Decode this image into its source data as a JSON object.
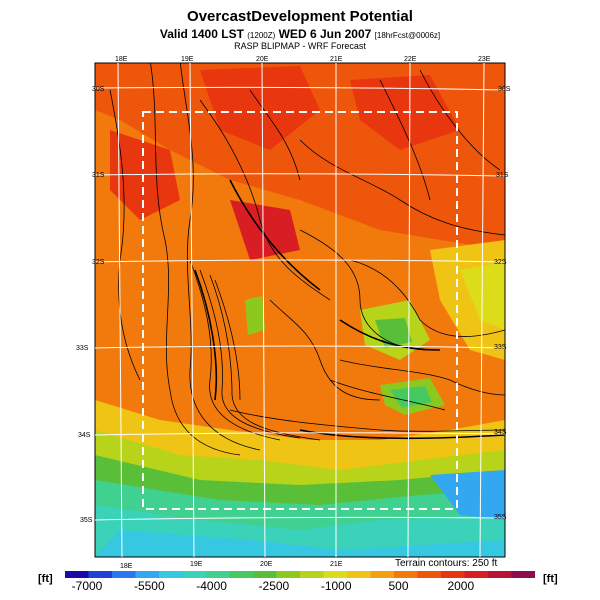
{
  "title": "OvercastDevelopment Potential",
  "subtitle": {
    "prefix": "Valid 1400 LST",
    "small1": "(1200Z)",
    "middle": "WED 6 Jun 2007",
    "small2": "[18hrFcst@0006z]"
  },
  "model": "RASP BLIPMAP - WRF Forecast",
  "terrain_note": "Terrain contours: 250 ft",
  "unit_left": "[ft]",
  "unit_right": "[ft]",
  "lon_labels_top": [
    "18E",
    "19E",
    "20E",
    "21E",
    "22E",
    "23E"
  ],
  "lon_labels_bottom": [
    "18E",
    "19E",
    "20E",
    "21E"
  ],
  "lat_labels_left": [
    "30S",
    "31S",
    "32S",
    "33S",
    "34S",
    "35S"
  ],
  "lat_labels_right": [
    "30S",
    "31S",
    "32S",
    "33S",
    "34S",
    "35S"
  ],
  "colorbar": {
    "labels": [
      "-7000",
      "-5500",
      "-4000",
      "-2500",
      "-1000",
      "500",
      "2000"
    ],
    "colors": [
      "#1a0aa8",
      "#1f3fd6",
      "#2a78ee",
      "#33a8f0",
      "#36c8e0",
      "#3ad2b8",
      "#40d090",
      "#48c860",
      "#5abf38",
      "#8cc81e",
      "#b8d41a",
      "#dcdc18",
      "#f0c414",
      "#f4a010",
      "#f27a0c",
      "#ee560c",
      "#e8360e",
      "#d81e22",
      "#b81438",
      "#8c0c4c"
    ]
  }
}
